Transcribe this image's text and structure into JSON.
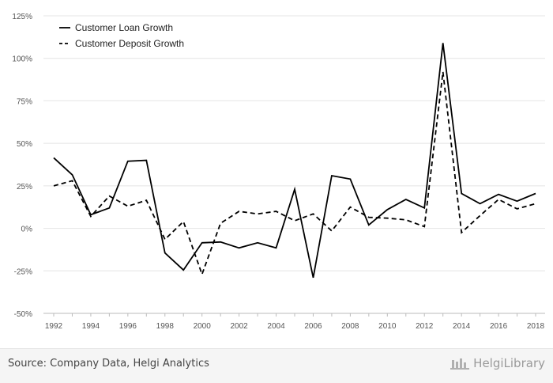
{
  "chart_data": {
    "type": "line",
    "x": [
      1992,
      1993,
      1994,
      1995,
      1996,
      1997,
      1998,
      1999,
      2000,
      2001,
      2002,
      2003,
      2004,
      2005,
      2006,
      2007,
      2008,
      2009,
      2010,
      2011,
      2012,
      2013,
      2014,
      2015,
      2016,
      2017,
      2018
    ],
    "x_ticks": [
      "1992",
      "1994",
      "1996",
      "1998",
      "2000",
      "2002",
      "2004",
      "2006",
      "2008",
      "2010",
      "2012",
      "2014",
      "2016",
      "2018"
    ],
    "y_ticks": [
      "125%",
      "100%",
      "75%",
      "50%",
      "25%",
      "0%",
      "-25%",
      "-50%"
    ],
    "ylim": [
      -50,
      125
    ],
    "y_unit": "%",
    "grid": "horizontal",
    "legend_position": "top-left",
    "series": [
      {
        "name": "Customer Loan Growth",
        "style": "solid",
        "color": "#000000",
        "values": [
          41.5,
          31.5,
          8,
          12,
          39.5,
          40,
          -14.5,
          -24.5,
          -8.5,
          -8,
          -11.5,
          -8.5,
          -11.5,
          23,
          -29,
          31,
          29,
          2,
          11,
          17,
          12,
          109,
          20.5,
          14.5,
          20,
          16,
          20.5
        ]
      },
      {
        "name": "Customer Deposit Growth",
        "style": "dashed",
        "color": "#000000",
        "values": [
          25,
          28,
          7,
          19,
          13,
          16.5,
          -6.5,
          4,
          -27,
          3,
          10,
          8.5,
          10,
          4.5,
          8.5,
          -1.5,
          12.5,
          6.5,
          6,
          5,
          1,
          92,
          -2.5,
          7.5,
          17,
          11.5,
          14.5
        ]
      }
    ]
  },
  "footer": {
    "source": "Source: Company Data, Helgi Analytics",
    "brand": "HelgiLibrary"
  }
}
